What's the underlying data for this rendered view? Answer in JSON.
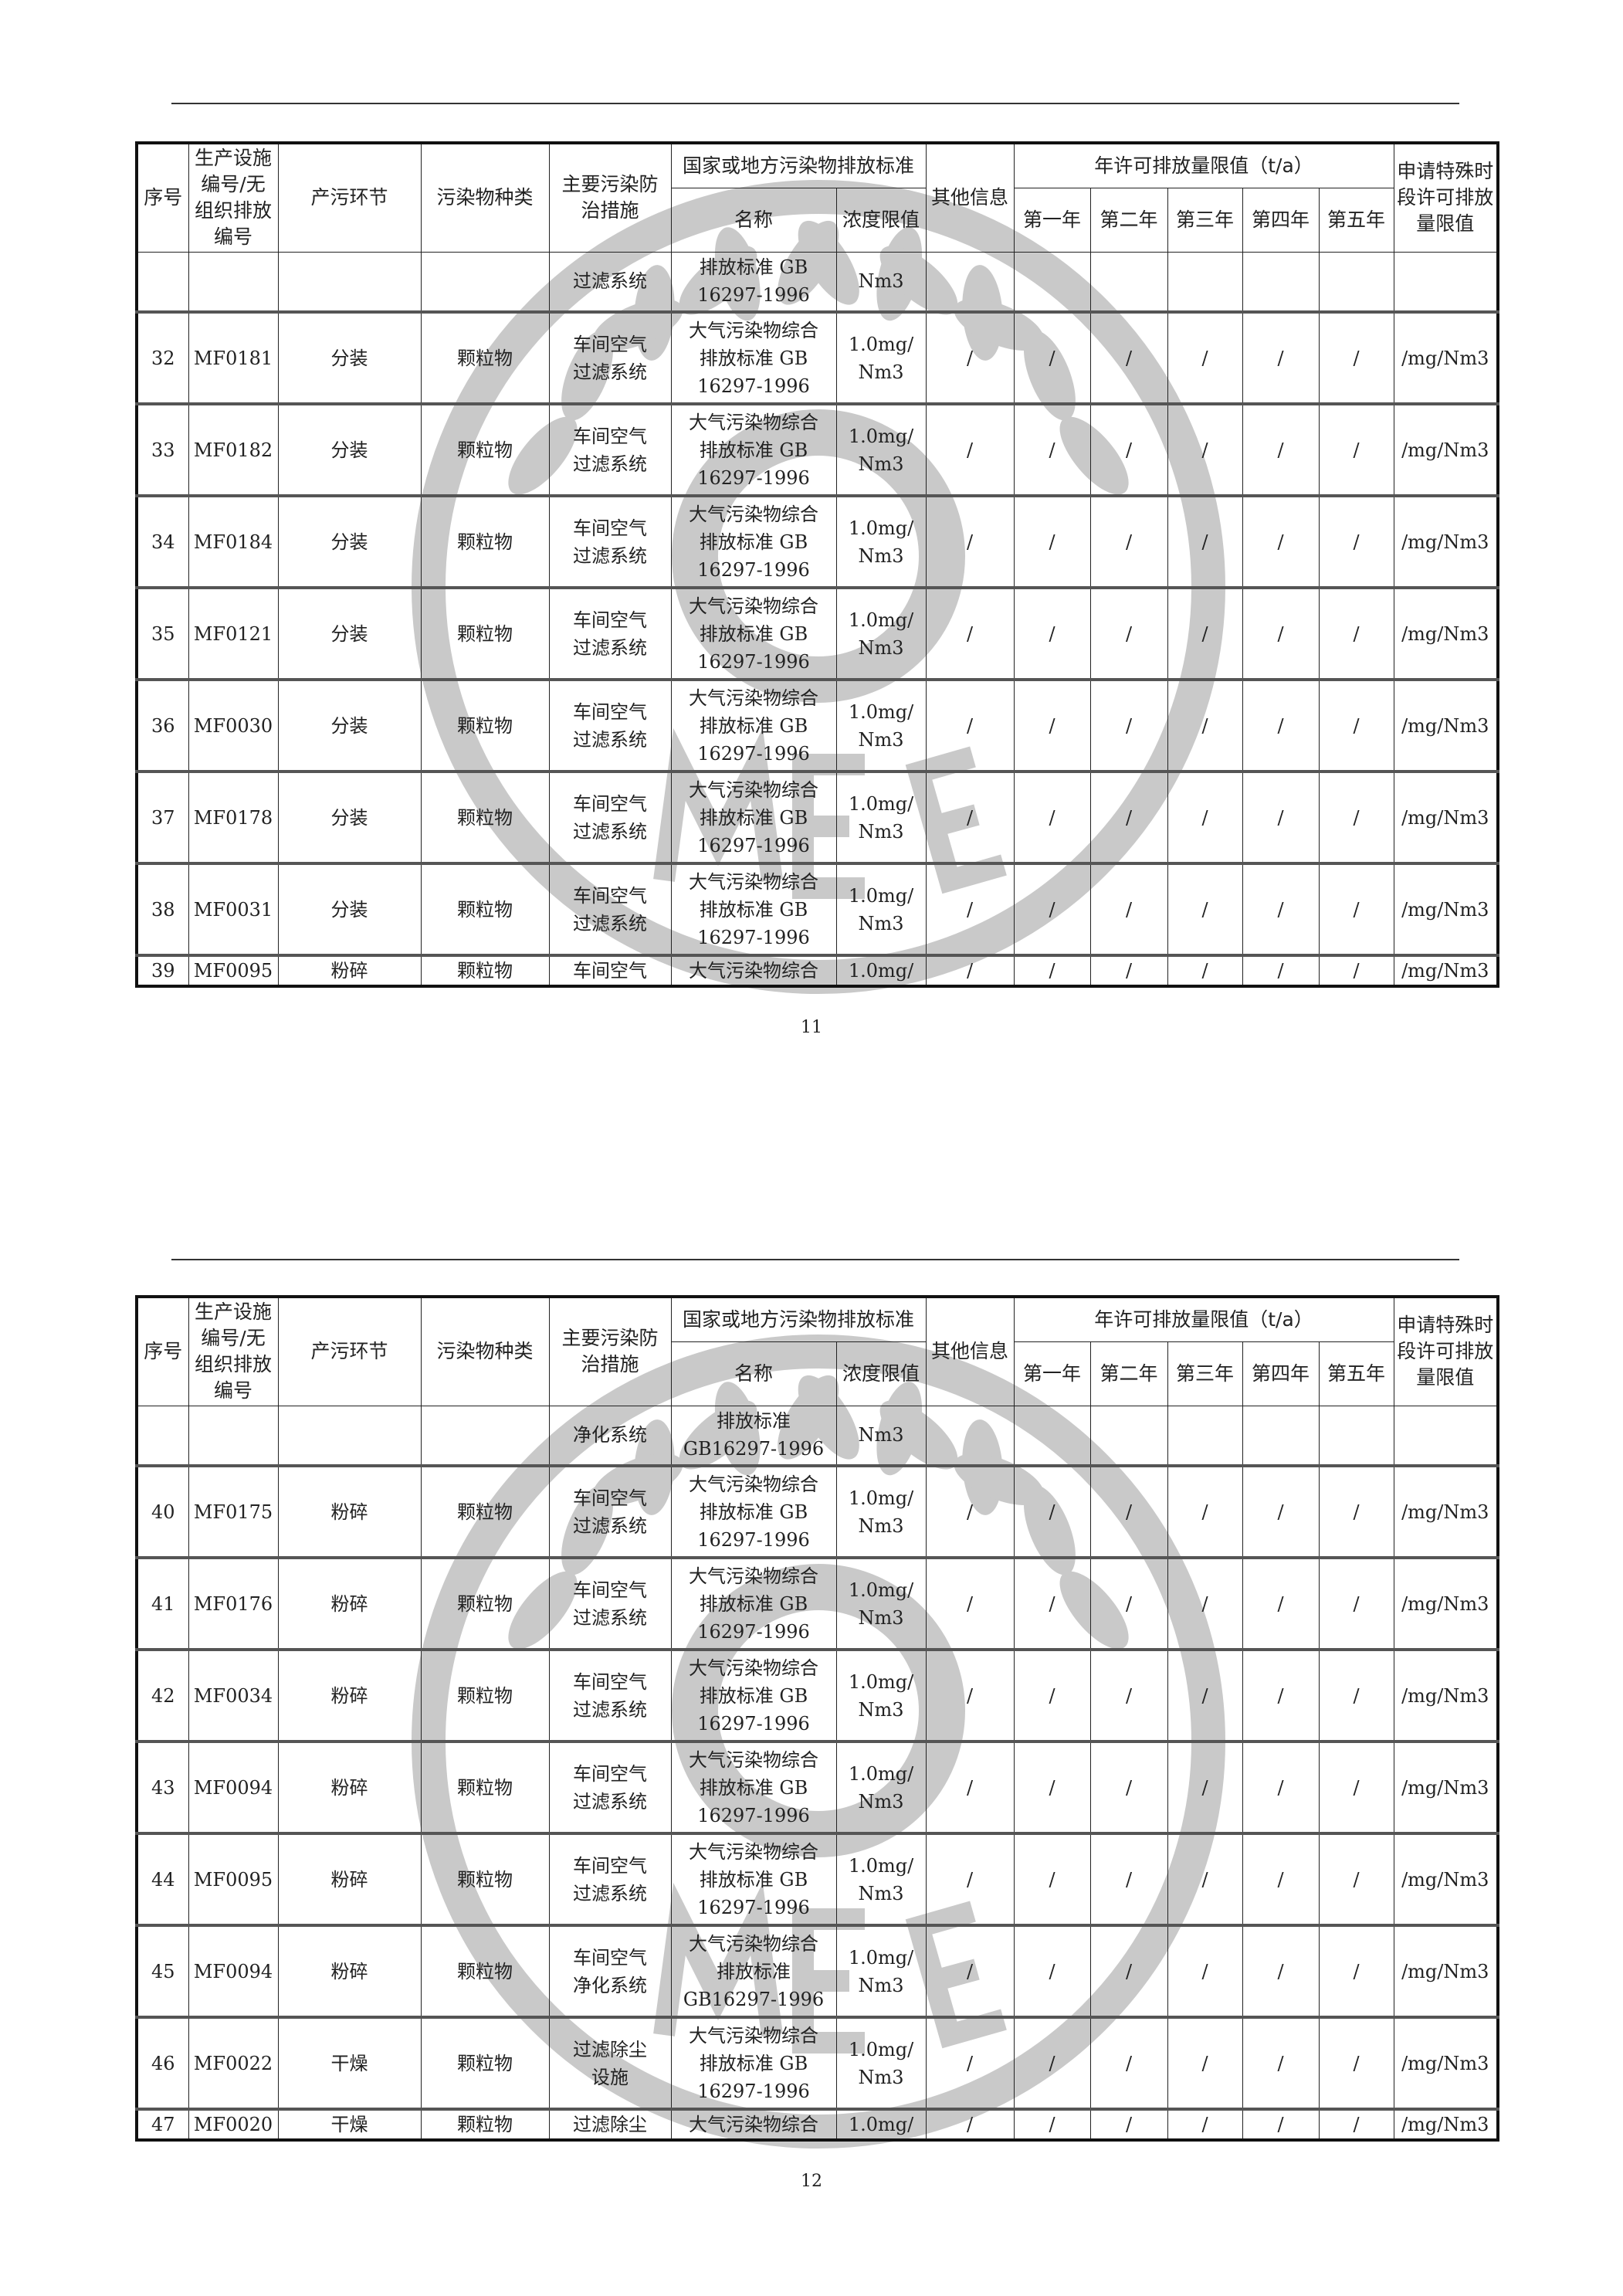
{
  "header": {
    "no": "序号",
    "facility_code": "生产设施\n编号/无\n组织排放\n编号",
    "stage": "产污环节",
    "pollutant": "污染物种类",
    "measure": "主要污染防\n治措施",
    "standard_group": "国家或地方污染物排放标准",
    "std_name": "名称",
    "std_conc": "浓度限值",
    "other": "其他信息",
    "annual_group": "年许可排放量限值（t/a）",
    "y1": "第一年",
    "y2": "第二年",
    "y3": "第三年",
    "y4": "第四年",
    "y5": "第五年",
    "special": "申请特殊时\n段许可排放\n量限值"
  },
  "watermark_color": "#c9c9c9",
  "pages": [
    {
      "page_number": "11",
      "rows": [
        [
          "",
          "",
          "",
          "",
          "过滤系统",
          "排放标准 GB\n16297-1996",
          "Nm3",
          "",
          "",
          "",
          "",
          "",
          "",
          ""
        ],
        [
          "32",
          "MF0181",
          "分装",
          "颗粒物",
          "车间空气\n过滤系统",
          "大气污染物综合\n排放标准 GB\n16297-1996",
          "1.0mg/\nNm3",
          "/",
          "/",
          "/",
          "/",
          "/",
          "/",
          "/mg/Nm3"
        ],
        [
          "33",
          "MF0182",
          "分装",
          "颗粒物",
          "车间空气\n过滤系统",
          "大气污染物综合\n排放标准 GB\n16297-1996",
          "1.0mg/\nNm3",
          "/",
          "/",
          "/",
          "/",
          "/",
          "/",
          "/mg/Nm3"
        ],
        [
          "34",
          "MF0184",
          "分装",
          "颗粒物",
          "车间空气\n过滤系统",
          "大气污染物综合\n排放标准 GB\n16297-1996",
          "1.0mg/\nNm3",
          "/",
          "/",
          "/",
          "/",
          "/",
          "/",
          "/mg/Nm3"
        ],
        [
          "35",
          "MF0121",
          "分装",
          "颗粒物",
          "车间空气\n过滤系统",
          "大气污染物综合\n排放标准 GB\n16297-1996",
          "1.0mg/\nNm3",
          "/",
          "/",
          "/",
          "/",
          "/",
          "/",
          "/mg/Nm3"
        ],
        [
          "36",
          "MF0030",
          "分装",
          "颗粒物",
          "车间空气\n过滤系统",
          "大气污染物综合\n排放标准 GB\n16297-1996",
          "1.0mg/\nNm3",
          "/",
          "/",
          "/",
          "/",
          "/",
          "/",
          "/mg/Nm3"
        ],
        [
          "37",
          "MF0178",
          "分装",
          "颗粒物",
          "车间空气\n过滤系统",
          "大气污染物综合\n排放标准 GB\n16297-1996",
          "1.0mg/\nNm3",
          "/",
          "/",
          "/",
          "/",
          "/",
          "/",
          "/mg/Nm3"
        ],
        [
          "38",
          "MF0031",
          "分装",
          "颗粒物",
          "车间空气\n过滤系统",
          "大气污染物综合\n排放标准 GB\n16297-1996",
          "1.0mg/\nNm3",
          "/",
          "/",
          "/",
          "/",
          "/",
          "/",
          "/mg/Nm3"
        ],
        [
          "39",
          "MF0095",
          "粉碎",
          "颗粒物",
          "车间空气",
          "大气污染物综合",
          "1.0mg/",
          "/",
          "/",
          "/",
          "/",
          "/",
          "/",
          "/mg/Nm3"
        ]
      ]
    },
    {
      "page_number": "12",
      "rows": [
        [
          "",
          "",
          "",
          "",
          "净化系统",
          "排放标准\nGB16297-1996",
          "Nm3",
          "",
          "",
          "",
          "",
          "",
          "",
          ""
        ],
        [
          "40",
          "MF0175",
          "粉碎",
          "颗粒物",
          "车间空气\n过滤系统",
          "大气污染物综合\n排放标准 GB\n16297-1996",
          "1.0mg/\nNm3",
          "/",
          "/",
          "/",
          "/",
          "/",
          "/",
          "/mg/Nm3"
        ],
        [
          "41",
          "MF0176",
          "粉碎",
          "颗粒物",
          "车间空气\n过滤系统",
          "大气污染物综合\n排放标准 GB\n16297-1996",
          "1.0mg/\nNm3",
          "/",
          "/",
          "/",
          "/",
          "/",
          "/",
          "/mg/Nm3"
        ],
        [
          "42",
          "MF0034",
          "粉碎",
          "颗粒物",
          "车间空气\n过滤系统",
          "大气污染物综合\n排放标准 GB\n16297-1996",
          "1.0mg/\nNm3",
          "/",
          "/",
          "/",
          "/",
          "/",
          "/",
          "/mg/Nm3"
        ],
        [
          "43",
          "MF0094",
          "粉碎",
          "颗粒物",
          "车间空气\n过滤系统",
          "大气污染物综合\n排放标准 GB\n16297-1996",
          "1.0mg/\nNm3",
          "/",
          "/",
          "/",
          "/",
          "/",
          "/",
          "/mg/Nm3"
        ],
        [
          "44",
          "MF0095",
          "粉碎",
          "颗粒物",
          "车间空气\n过滤系统",
          "大气污染物综合\n排放标准 GB\n16297-1996",
          "1.0mg/\nNm3",
          "/",
          "/",
          "/",
          "/",
          "/",
          "/",
          "/mg/Nm3"
        ],
        [
          "45",
          "MF0094",
          "粉碎",
          "颗粒物",
          "车间空气\n净化系统",
          "大气污染物综合\n排放标准\nGB16297-1996",
          "1.0mg/\nNm3",
          "/",
          "/",
          "/",
          "/",
          "/",
          "/",
          "/mg/Nm3"
        ],
        [
          "46",
          "MF0022",
          "干燥",
          "颗粒物",
          "过滤除尘\n设施",
          "大气污染物综合\n排放标准 GB\n16297-1996",
          "1.0mg/\nNm3",
          "/",
          "/",
          "/",
          "/",
          "/",
          "/",
          "/mg/Nm3"
        ],
        [
          "47",
          "MF0020",
          "干燥",
          "颗粒物",
          "过滤除尘",
          "大气污染物综合",
          "1.0mg/",
          "/",
          "/",
          "/",
          "/",
          "/",
          "/",
          "/mg/Nm3"
        ]
      ]
    }
  ]
}
